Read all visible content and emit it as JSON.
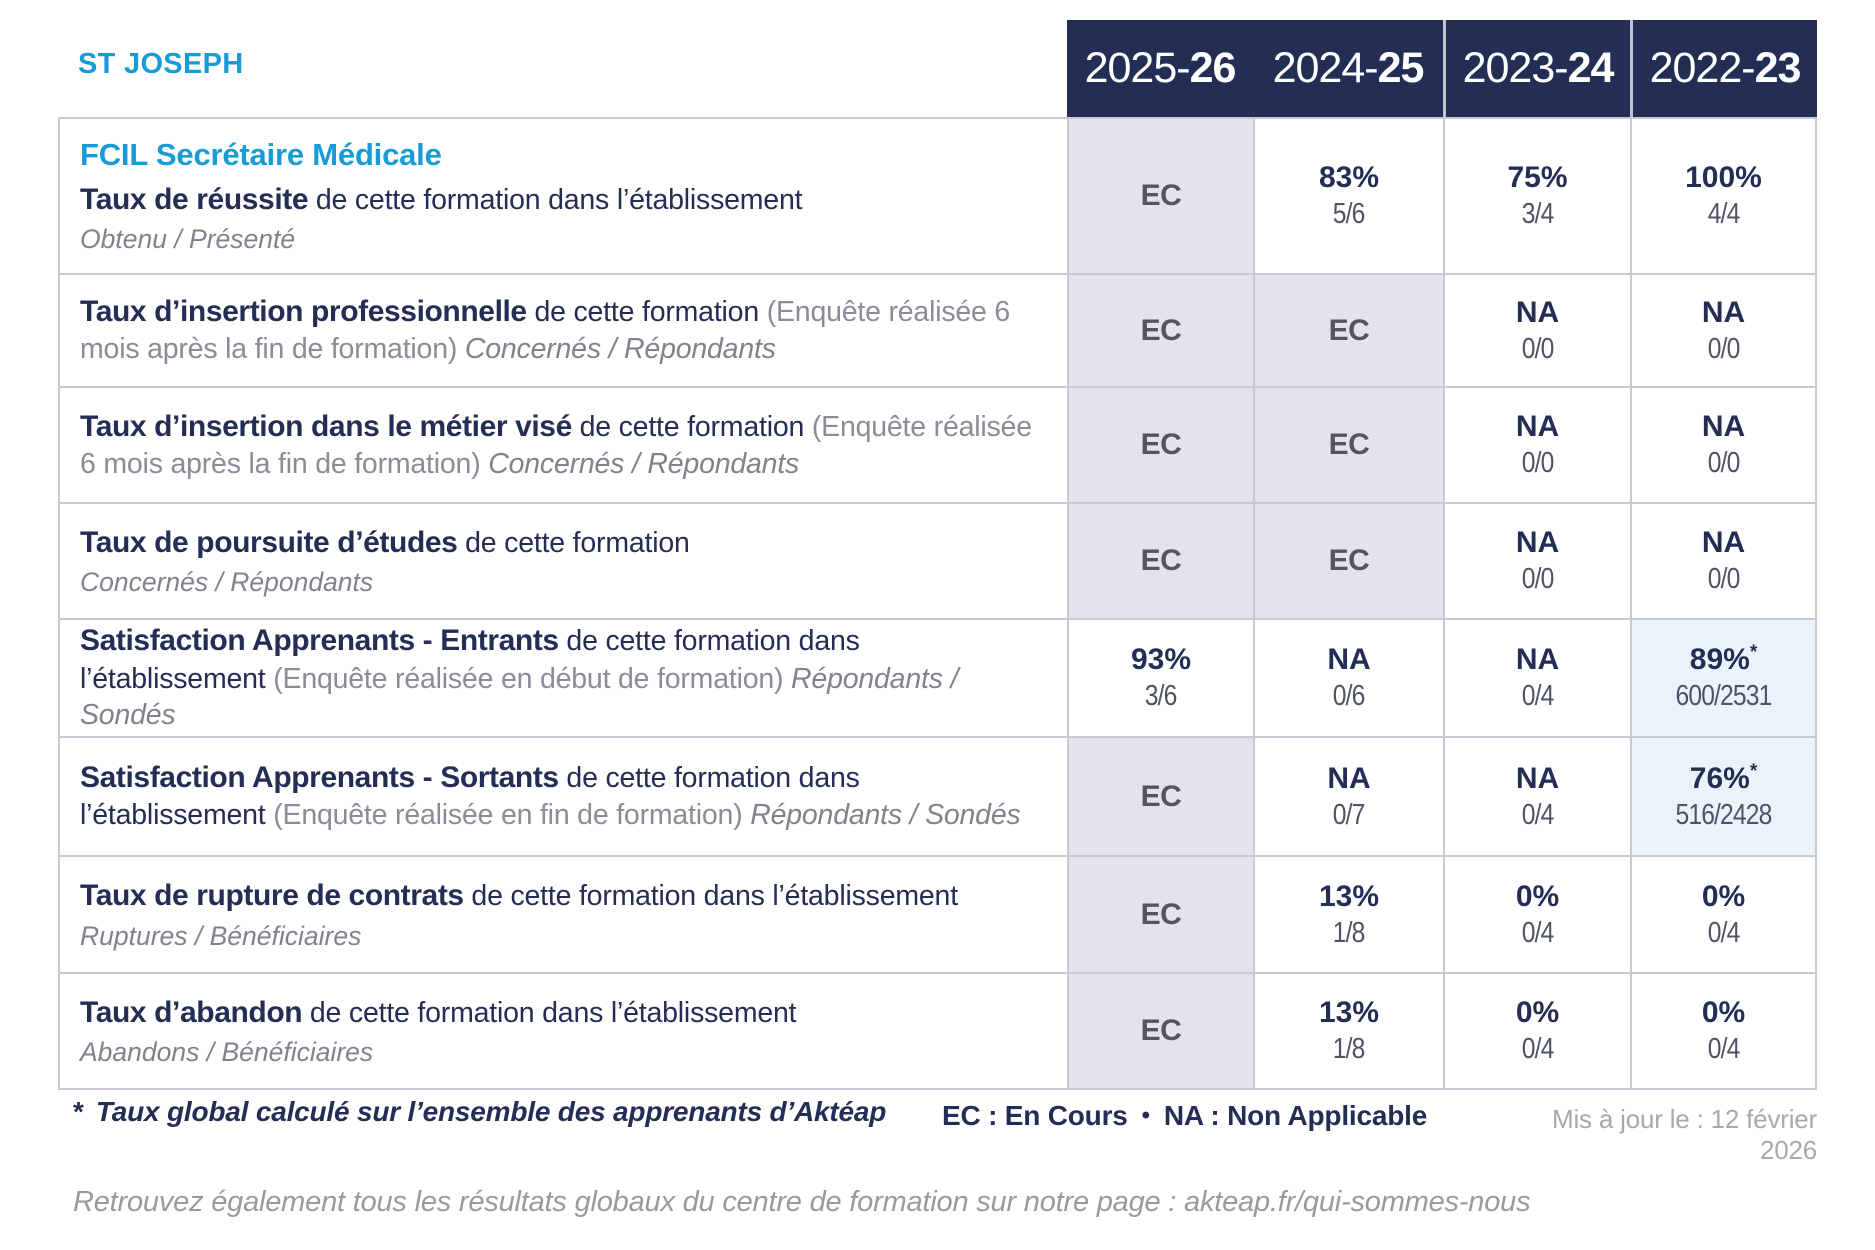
{
  "school": "ST JOSEPH",
  "program": "FCIL Secrétaire Médicale",
  "header": {
    "years": [
      {
        "pre": "2025-",
        "bold": "26"
      },
      {
        "pre": "2024-",
        "bold": "25"
      },
      {
        "pre": "2023-",
        "bold": "24"
      },
      {
        "pre": "2022-",
        "bold": "23"
      }
    ]
  },
  "rows": [
    {
      "title": "Taux de réussite",
      "navy": " de cette formation dans l’établissement",
      "gray": "",
      "italic": "Obtenu / Présenté",
      "italic_inline": false,
      "cells": [
        {
          "kind": "ec",
          "main": "EC"
        },
        {
          "kind": "val",
          "main": "83%",
          "frac": "5/6"
        },
        {
          "kind": "val",
          "main": "75%",
          "frac": "3/4"
        },
        {
          "kind": "val",
          "main": "100%",
          "frac": "4/4"
        }
      ]
    },
    {
      "title": "Taux d’insertion professionnelle",
      "navy": " de cette formation ",
      "gray": "(Enquête réalisée 6 mois après la fin de formation) ",
      "italic": "Concernés / Répondants",
      "italic_inline": true,
      "cells": [
        {
          "kind": "ec",
          "main": "EC"
        },
        {
          "kind": "ec",
          "main": "EC"
        },
        {
          "kind": "val",
          "main": "NA",
          "frac": "0/0"
        },
        {
          "kind": "val",
          "main": "NA",
          "frac": "0/0"
        }
      ]
    },
    {
      "title": "Taux d’insertion dans le métier visé",
      "navy": " de cette formation ",
      "gray": "(Enquête réalisée 6 mois après la fin de formation) ",
      "italic": "Concernés / Répondants",
      "italic_inline": true,
      "cells": [
        {
          "kind": "ec",
          "main": "EC"
        },
        {
          "kind": "ec",
          "main": "EC"
        },
        {
          "kind": "val",
          "main": "NA",
          "frac": "0/0"
        },
        {
          "kind": "val",
          "main": "NA",
          "frac": "0/0"
        }
      ]
    },
    {
      "title": "Taux de poursuite d’études",
      "navy": " de cette formation",
      "gray": "",
      "italic": "Concernés / Répondants",
      "italic_inline": false,
      "cells": [
        {
          "kind": "ec",
          "main": "EC"
        },
        {
          "kind": "ec",
          "main": "EC"
        },
        {
          "kind": "val",
          "main": "NA",
          "frac": "0/0"
        },
        {
          "kind": "val",
          "main": "NA",
          "frac": "0/0"
        }
      ]
    },
    {
      "title": "Satisfaction Apprenants - Entrants",
      "navy": " de cette formation dans l’établissement ",
      "gray": "(Enquête réalisée en début de formation) ",
      "italic": "Répondants / Sondés",
      "italic_inline": true,
      "cells": [
        {
          "kind": "val",
          "main": "93%",
          "frac": "3/6"
        },
        {
          "kind": "val",
          "main": "NA",
          "frac": "0/6"
        },
        {
          "kind": "val",
          "main": "NA",
          "frac": "0/4"
        },
        {
          "kind": "val",
          "main": "89%",
          "star": "*",
          "frac": "600/2531",
          "bg": "blue"
        }
      ]
    },
    {
      "title": "Satisfaction Apprenants - Sortants",
      "navy": " de cette formation dans l’établissement ",
      "gray": "(Enquête réalisée en fin de formation) ",
      "italic": "Répondants / Sondés",
      "italic_inline": true,
      "cells": [
        {
          "kind": "ec",
          "main": "EC"
        },
        {
          "kind": "val",
          "main": "NA",
          "frac": "0/7"
        },
        {
          "kind": "val",
          "main": "NA",
          "frac": "0/4"
        },
        {
          "kind": "val",
          "main": "76%",
          "star": "*",
          "frac": "516/2428",
          "bg": "blue"
        }
      ]
    },
    {
      "title": "Taux de rupture de contrats",
      "navy": " de cette formation dans l’établissement",
      "gray": "",
      "italic": "Ruptures / Bénéficiaires",
      "italic_inline": false,
      "cells": [
        {
          "kind": "ec",
          "main": "EC"
        },
        {
          "kind": "val",
          "main": "13%",
          "frac": "1/8"
        },
        {
          "kind": "val",
          "main": "0%",
          "frac": "0/4"
        },
        {
          "kind": "val",
          "main": "0%",
          "frac": "0/4"
        }
      ]
    },
    {
      "title": "Taux d’abandon",
      "navy": " de cette formation dans l’établissement",
      "gray": "",
      "italic": "Abandons / Bénéficiaires",
      "italic_inline": false,
      "cells": [
        {
          "kind": "ec",
          "main": "EC"
        },
        {
          "kind": "val",
          "main": "13%",
          "frac": "1/8"
        },
        {
          "kind": "val",
          "main": "0%",
          "frac": "0/4"
        },
        {
          "kind": "val",
          "main": "0%",
          "frac": "0/4"
        }
      ]
    }
  ],
  "footer": {
    "note_star": "*",
    "note": "Taux global calculé sur l’ensemble des apprenants d’Aktéap",
    "legend_ec": "EC : En Cours",
    "legend_bullet": "•",
    "legend_na": "NA : Non Applicable",
    "updated": "Mis à jour le : 12 février 2026",
    "bottom": "Retrouvez également tous les résultats globaux du centre de formation sur notre page : akteap.fr/qui-sommes-nous"
  },
  "colors": {
    "accent_blue": "#189CD8",
    "navy": "#242E54",
    "ec_cell_bg": "#E4E3ED",
    "highlight_cell_bg": "#EAF3FA",
    "border": "#C9C9D4"
  }
}
